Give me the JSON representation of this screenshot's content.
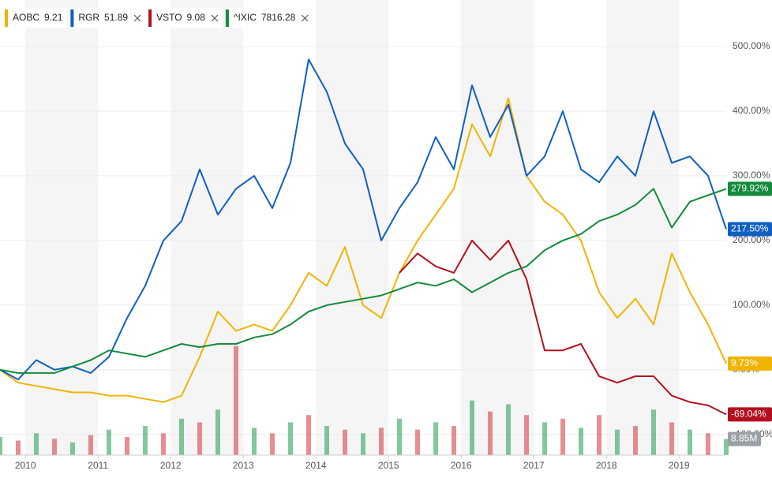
{
  "chart_data": {
    "type": "line",
    "x": [
      2009.65,
      2009.9,
      2010.15,
      2010.4,
      2010.65,
      2010.9,
      2011.15,
      2011.4,
      2011.65,
      2011.9,
      2012.15,
      2012.4,
      2012.65,
      2012.9,
      2013.15,
      2013.4,
      2013.65,
      2013.9,
      2014.15,
      2014.4,
      2014.65,
      2014.9,
      2015.15,
      2015.4,
      2015.65,
      2015.9,
      2016.15,
      2016.4,
      2016.65,
      2016.9,
      2017.15,
      2017.4,
      2017.65,
      2017.9,
      2018.15,
      2018.4,
      2018.65,
      2018.9,
      2019.15,
      2019.4,
      2019.65
    ],
    "xlim": [
      2009.65,
      2019.65
    ],
    "xticks": [
      2010,
      2011,
      2012,
      2013,
      2014,
      2015,
      2016,
      2017,
      2018,
      2019
    ],
    "ylim": [
      -132,
      572
    ],
    "yticks": [
      {
        "value": -100,
        "label": "-100.00%"
      },
      {
        "value": 0,
        "label": "0.00%"
      },
      {
        "value": 100,
        "label": "100.00%"
      },
      {
        "value": 200,
        "label": "200.00%"
      },
      {
        "value": 300,
        "label": "300.00%"
      },
      {
        "value": 400,
        "label": "400.00%"
      },
      {
        "value": 500,
        "label": "500.00%"
      }
    ],
    "grid": true,
    "series": [
      {
        "name": "AOBC",
        "price": 9.21,
        "color": "#f0b400",
        "values": [
          0,
          -20,
          -25,
          -30,
          -35,
          -35,
          -40,
          -40,
          -45,
          -50,
          -40,
          20,
          90,
          60,
          70,
          60,
          100,
          150,
          130,
          190,
          100,
          80,
          150,
          200,
          240,
          280,
          380,
          330,
          420,
          300,
          260,
          240,
          200,
          120,
          80,
          110,
          70,
          180,
          120,
          70,
          9.73
        ],
        "value_labels": [
          null,
          null,
          null,
          null,
          null,
          null,
          null,
          null,
          null,
          null,
          null,
          null,
          null,
          null,
          null,
          null,
          null,
          null,
          null,
          null,
          null,
          null,
          null,
          null,
          null,
          null,
          null,
          null,
          null,
          null,
          null,
          null,
          null,
          null,
          null,
          null,
          null,
          null,
          null,
          null,
          "9.73%"
        ]
      },
      {
        "name": "RGR",
        "price": 51.89,
        "color": "#0f5fc2",
        "values": [
          0,
          -15,
          15,
          0,
          5,
          -5,
          20,
          80,
          130,
          200,
          230,
          310,
          240,
          280,
          300,
          250,
          320,
          480,
          430,
          350,
          310,
          200,
          250,
          290,
          360,
          310,
          440,
          360,
          410,
          300,
          330,
          400,
          310,
          290,
          330,
          300,
          400,
          320,
          330,
          300,
          217.5
        ],
        "value_labels": [
          null,
          null,
          null,
          null,
          null,
          null,
          null,
          null,
          null,
          null,
          null,
          null,
          null,
          null,
          null,
          null,
          null,
          null,
          null,
          null,
          null,
          null,
          null,
          null,
          null,
          null,
          null,
          null,
          null,
          null,
          null,
          null,
          null,
          null,
          null,
          null,
          null,
          null,
          null,
          null,
          "217.50%"
        ]
      },
      {
        "name": "VSTO",
        "price": 9.08,
        "color": "#b30f1f",
        "values": [
          null,
          null,
          null,
          null,
          null,
          null,
          null,
          null,
          null,
          null,
          null,
          null,
          null,
          null,
          null,
          null,
          null,
          null,
          null,
          null,
          null,
          null,
          150,
          180,
          160,
          150,
          200,
          170,
          200,
          140,
          30,
          30,
          40,
          -10,
          -20,
          -10,
          -10,
          -40,
          -50,
          -55,
          -69.04
        ],
        "value_labels": [
          null,
          null,
          null,
          null,
          null,
          null,
          null,
          null,
          null,
          null,
          null,
          null,
          null,
          null,
          null,
          null,
          null,
          null,
          null,
          null,
          null,
          null,
          null,
          null,
          null,
          null,
          null,
          null,
          null,
          null,
          null,
          null,
          null,
          null,
          null,
          null,
          null,
          null,
          null,
          null,
          "-69.04%"
        ]
      },
      {
        "name": "^IXIC",
        "price": 7816.28,
        "color": "#138a3c",
        "values": [
          0,
          -5,
          -5,
          -5,
          5,
          15,
          30,
          25,
          20,
          30,
          40,
          35,
          40,
          40,
          50,
          55,
          70,
          90,
          100,
          105,
          110,
          115,
          125,
          135,
          130,
          140,
          120,
          135,
          150,
          160,
          185,
          200,
          210,
          230,
          240,
          255,
          280,
          220,
          260,
          270,
          279.92
        ],
        "value_labels": [
          null,
          null,
          null,
          null,
          null,
          null,
          null,
          null,
          null,
          null,
          null,
          null,
          null,
          null,
          null,
          null,
          null,
          null,
          null,
          null,
          null,
          null,
          null,
          null,
          null,
          null,
          null,
          null,
          null,
          null,
          null,
          null,
          null,
          null,
          null,
          null,
          null,
          null,
          null,
          null,
          "279.92%"
        ]
      }
    ],
    "volume": {
      "values": [
        10,
        8,
        12,
        9,
        7,
        11,
        14,
        10,
        16,
        12,
        20,
        18,
        25,
        60,
        15,
        12,
        18,
        22,
        16,
        14,
        12,
        15,
        20,
        14,
        18,
        16,
        30,
        24,
        28,
        22,
        18,
        20,
        15,
        22,
        14,
        16,
        25,
        18,
        14,
        12,
        8.85
      ],
      "vlim": [
        0,
        65
      ],
      "colors": [
        "#1a9a4a",
        "#d0313a"
      ],
      "last_label": "8.85M"
    }
  }
}
